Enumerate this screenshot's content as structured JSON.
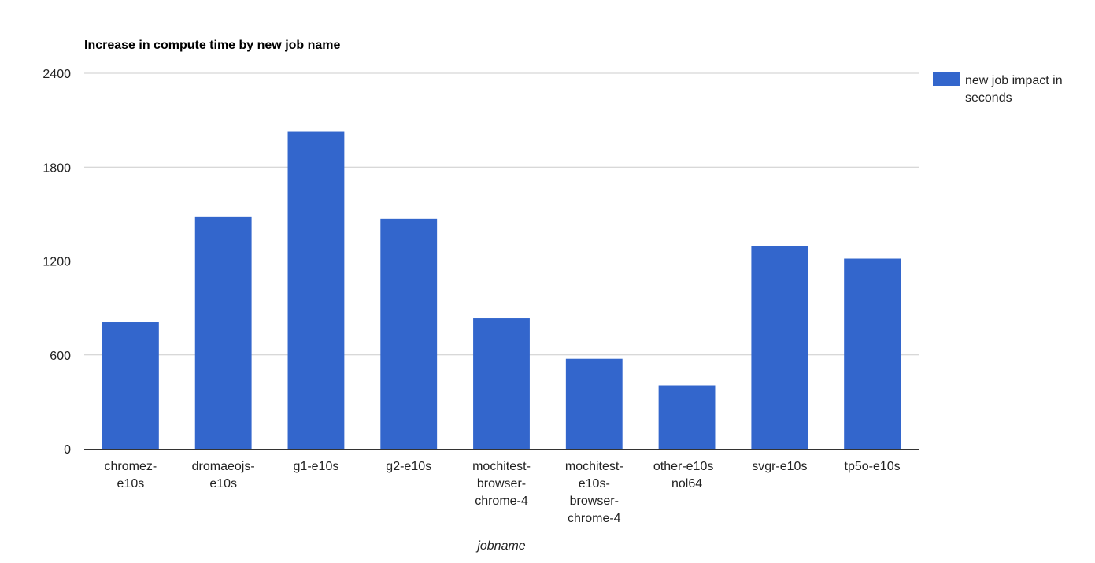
{
  "chart_data": {
    "type": "bar",
    "title": "Increase in compute time by new job name",
    "xlabel": "jobname",
    "ylabel": "",
    "ylim": [
      0,
      2400
    ],
    "yticks": [
      0,
      600,
      1200,
      1800,
      2400
    ],
    "grid": true,
    "legend_position": "right",
    "categories": [
      "chromez-e10s",
      "dromaeojs-e10s",
      "g1-e10s",
      "g2-e10s",
      "mochitest-browser-chrome-4",
      "mochitest-e10s-browser-chrome-4",
      "other-e10s_nol64",
      "svgr-e10s",
      "tp5o-e10s"
    ],
    "category_lines": [
      [
        "chromez-",
        "e10s"
      ],
      [
        "dromaeojs-",
        "e10s"
      ],
      [
        "g1-e10s"
      ],
      [
        "g2-e10s"
      ],
      [
        "mochitest-",
        "browser-",
        "chrome-4"
      ],
      [
        "mochitest-",
        "e10s-",
        "browser-",
        "chrome-4"
      ],
      [
        "other-e10s_",
        "nol64"
      ],
      [
        "svgr-e10s"
      ],
      [
        "tp5o-e10s"
      ]
    ],
    "series": [
      {
        "name": "new job impact in seconds",
        "legend_lines": [
          "new job impact in",
          "seconds"
        ],
        "color": "#3366cc",
        "values": [
          810,
          1485,
          2025,
          1470,
          835,
          575,
          405,
          1295,
          1215
        ]
      }
    ]
  }
}
